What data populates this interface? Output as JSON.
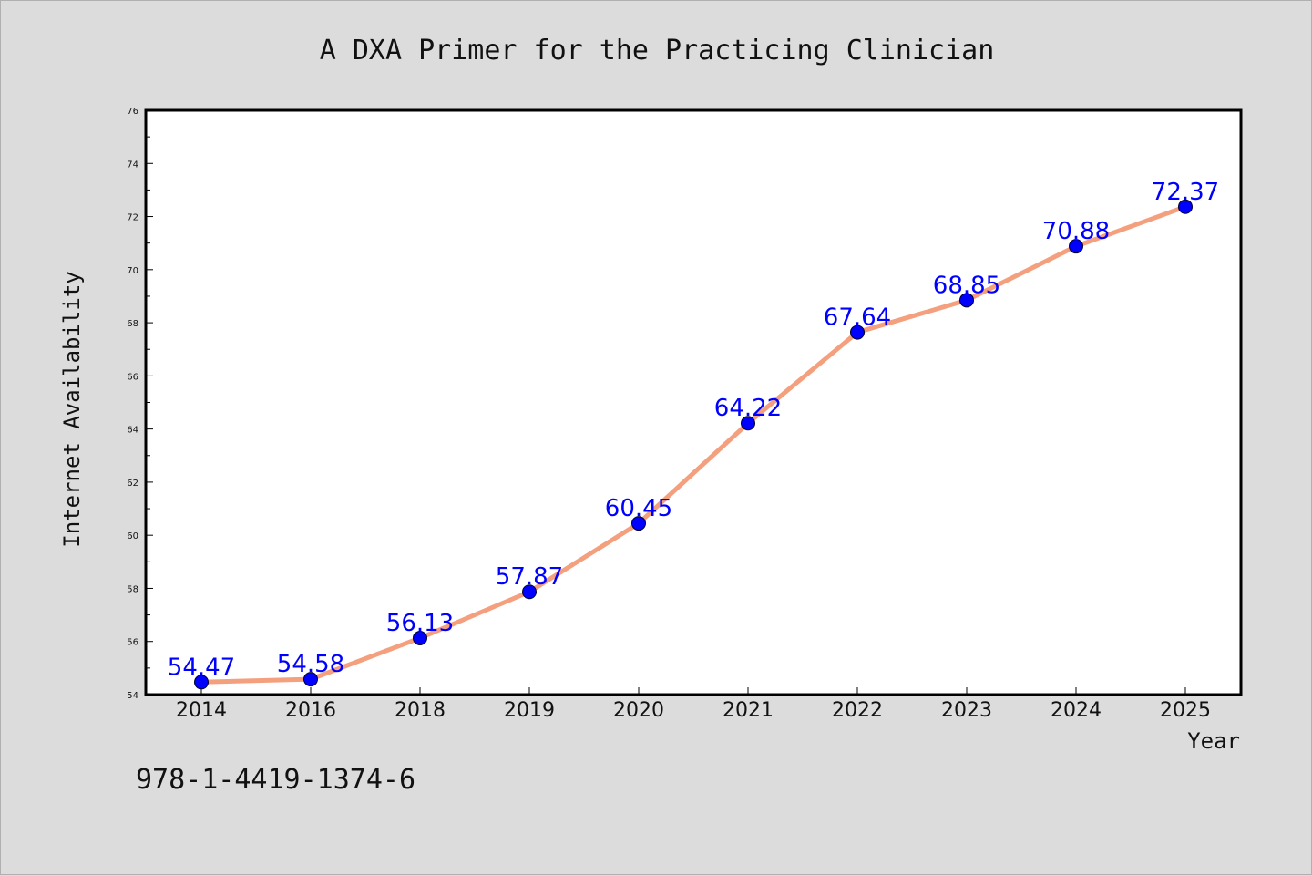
{
  "chart_data": {
    "type": "line",
    "title": "A DXA Primer for the Practicing Clinician",
    "xlabel": "Year",
    "ylabel": "Internet Availability",
    "categories": [
      "2014",
      "2016",
      "2018",
      "2019",
      "2020",
      "2021",
      "2022",
      "2023",
      "2024",
      "2025"
    ],
    "series": [
      {
        "values": [
          54.47,
          54.58,
          56.13,
          57.87,
          60.45,
          64.22,
          67.64,
          68.85,
          70.88,
          72.37
        ],
        "line_color": "#f4a07e",
        "marker_color": "#0000ff",
        "label_color": "#0000ff"
      }
    ],
    "data_labels": [
      "54.47",
      "54.58",
      "56.13",
      "57.87",
      "60.45",
      "64.22",
      "67.64",
      "68.85",
      "70.88",
      "72.37"
    ],
    "ylim": [
      54,
      76
    ],
    "y_ticks": [
      "54",
      "56",
      "58",
      "60",
      "62",
      "64",
      "66",
      "68",
      "70",
      "72",
      "74",
      "76"
    ],
    "grid": false,
    "legend": "none"
  },
  "annotation": {
    "isbn": "978-1-4419-1374-6"
  },
  "colors": {
    "background": "#dcdcdc",
    "plot_background": "#ffffff",
    "axis": "#000000"
  }
}
